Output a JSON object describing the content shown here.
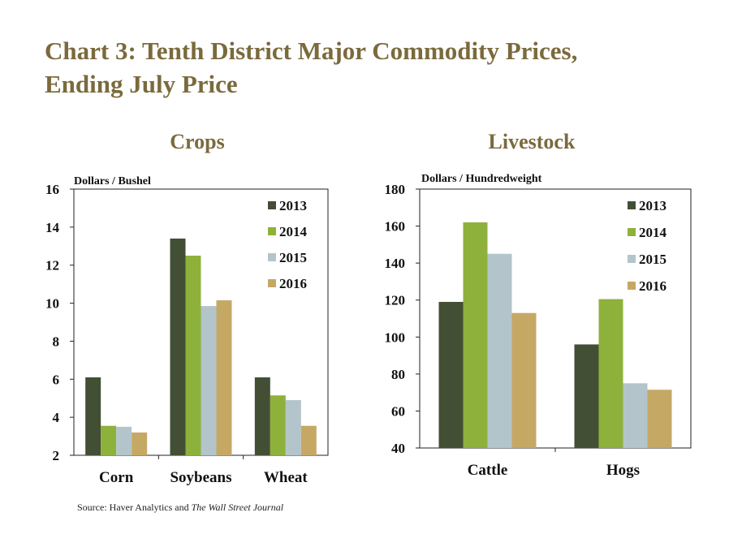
{
  "title": {
    "line1": "Chart 3: Tenth District Major Commodity Prices,",
    "line2": "Ending July Price"
  },
  "colors": {
    "title": "#7a6a3c",
    "2013": "#434f35",
    "2014": "#8eb13b",
    "2015": "#b3c5cb",
    "2016": "#c6a865"
  },
  "source": {
    "prefix": "Source: Haver Analytics and ",
    "journal": "The Wall Street Journal"
  },
  "chart_data": [
    {
      "type": "bar",
      "title": "Crops",
      "ylabel": "Dollars  / Bushel",
      "categories": [
        "Corn",
        "Soybeans",
        "Wheat"
      ],
      "ylim": [
        2,
        16
      ],
      "yticks": [
        2,
        4,
        6,
        8,
        10,
        12,
        14,
        16
      ],
      "legend_position": "top-right",
      "series": [
        {
          "name": "2013",
          "color": "#434f35",
          "values": [
            6.1,
            13.4,
            6.1
          ]
        },
        {
          "name": "2014",
          "color": "#8eb13b",
          "values": [
            3.55,
            12.5,
            5.15
          ]
        },
        {
          "name": "2015",
          "color": "#b3c5cb",
          "values": [
            3.5,
            9.85,
            4.9
          ]
        },
        {
          "name": "2016",
          "color": "#c6a865",
          "values": [
            3.2,
            10.15,
            3.55
          ]
        }
      ]
    },
    {
      "type": "bar",
      "title": "Livestock",
      "ylabel": "Dollars  / Hundredweight",
      "categories": [
        "Cattle",
        "Hogs"
      ],
      "ylim": [
        40,
        180
      ],
      "yticks": [
        40,
        60,
        80,
        100,
        120,
        140,
        160,
        180
      ],
      "legend_position": "top-right",
      "series": [
        {
          "name": "2013",
          "color": "#434f35",
          "values": [
            119,
            96
          ]
        },
        {
          "name": "2014",
          "color": "#8eb13b",
          "values": [
            162,
            120.5
          ]
        },
        {
          "name": "2015",
          "color": "#b3c5cb",
          "values": [
            145,
            75
          ]
        },
        {
          "name": "2016",
          "color": "#c6a865",
          "values": [
            113,
            71.5
          ]
        }
      ]
    }
  ]
}
